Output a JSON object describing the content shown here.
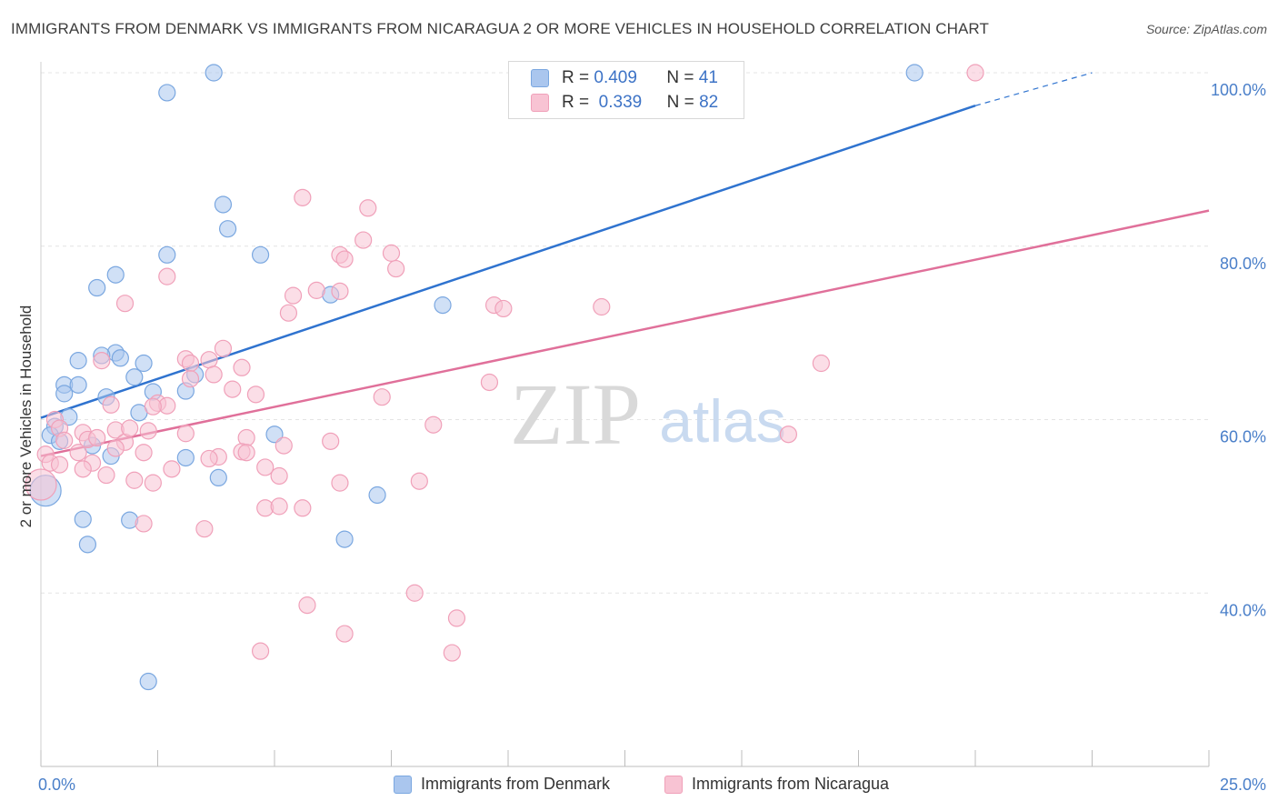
{
  "title": "IMMIGRANTS FROM DENMARK VS IMMIGRANTS FROM NICARAGUA 2 OR MORE VEHICLES IN HOUSEHOLD CORRELATION CHART",
  "source": "Source: ZipAtlas.com",
  "watermark": {
    "zip": "ZIP",
    "atlas": "atlas"
  },
  "legend": {
    "r_label": "R =",
    "n_label": "N =",
    "rows": [
      {
        "r": "0.409",
        "n": "41",
        "color": "#7aa7e0"
      },
      {
        "r": "0.339",
        "n": "82",
        "color": "#f4a3be"
      }
    ]
  },
  "colors": {
    "denmark_fill": "#aac6ee",
    "denmark_stroke": "#7aa7e0",
    "denmark_line": "#2f73cf",
    "nicaragua_fill": "#f8c3d3",
    "nicaragua_stroke": "#f0a0b9",
    "nicaragua_line": "#e0709a"
  },
  "chart_data": {
    "type": "scatter",
    "title": "IMMIGRANTS FROM DENMARK VS IMMIGRANTS FROM NICARAGUA 2 OR MORE VEHICLES IN HOUSEHOLD CORRELATION CHART",
    "xlabel": "",
    "ylabel": "2 or more Vehicles in Household",
    "xlim": [
      0,
      25
    ],
    "ylim": [
      20,
      100
    ],
    "x_tick_labels": [
      "0.0%",
      "25.0%"
    ],
    "y_ticks": [
      40,
      60,
      80,
      100
    ],
    "y_tick_labels": [
      "40.0%",
      "60.0%",
      "80.0%",
      "100.0%"
    ],
    "grid": true,
    "legend_placement": "top-center",
    "series": [
      {
        "name": "Immigrants from Denmark",
        "r": 0.409,
        "n": 41,
        "trend": {
          "x0": 0,
          "y0": 60.2,
          "x1": 20,
          "y1": 96.2,
          "dash_to_x": 22.5,
          "dash_to_y": 100
        },
        "points": [
          [
            3.7,
            100
          ],
          [
            18.7,
            100
          ],
          [
            2.7,
            97.7
          ],
          [
            3.9,
            84.8
          ],
          [
            4.0,
            82.0
          ],
          [
            2.7,
            79.0
          ],
          [
            4.7,
            79.0
          ],
          [
            1.6,
            76.7
          ],
          [
            1.2,
            75.2
          ],
          [
            6.2,
            74.4
          ],
          [
            8.6,
            73.2
          ],
          [
            0.8,
            66.8
          ],
          [
            1.6,
            67.7
          ],
          [
            1.3,
            67.4
          ],
          [
            1.7,
            67.1
          ],
          [
            2.2,
            66.5
          ],
          [
            0.5,
            64.0
          ],
          [
            0.8,
            64.0
          ],
          [
            2.0,
            64.9
          ],
          [
            3.3,
            65.2
          ],
          [
            0.5,
            63.0
          ],
          [
            1.4,
            62.6
          ],
          [
            2.4,
            63.2
          ],
          [
            3.1,
            63.3
          ],
          [
            2.1,
            60.8
          ],
          [
            0.6,
            60.3
          ],
          [
            0.3,
            59.2
          ],
          [
            0.2,
            58.2
          ],
          [
            0.4,
            57.5
          ],
          [
            5.0,
            58.3
          ],
          [
            1.1,
            57.0
          ],
          [
            1.5,
            55.8
          ],
          [
            3.1,
            55.6
          ],
          [
            3.8,
            53.3
          ],
          [
            7.2,
            51.3
          ],
          [
            0.1,
            51.8
          ],
          [
            0.9,
            48.5
          ],
          [
            1.9,
            48.4
          ],
          [
            1.0,
            45.6
          ],
          [
            6.5,
            46.2
          ],
          [
            2.3,
            29.8
          ]
        ]
      },
      {
        "name": "Immigrants from Nicaragua",
        "r": 0.339,
        "n": 82,
        "trend": {
          "x0": 0,
          "y0": 55.8,
          "x1": 25,
          "y1": 84.1
        },
        "points": [
          [
            20.0,
            100
          ],
          [
            5.6,
            85.6
          ],
          [
            7.0,
            84.4
          ],
          [
            6.9,
            80.7
          ],
          [
            7.5,
            79.2
          ],
          [
            6.4,
            79.0
          ],
          [
            6.5,
            78.5
          ],
          [
            2.7,
            76.5
          ],
          [
            7.6,
            77.4
          ],
          [
            5.9,
            74.9
          ],
          [
            6.4,
            74.8
          ],
          [
            5.4,
            74.3
          ],
          [
            1.8,
            73.4
          ],
          [
            9.7,
            73.2
          ],
          [
            9.9,
            72.8
          ],
          [
            12.0,
            73.0
          ],
          [
            5.3,
            72.3
          ],
          [
            3.9,
            68.2
          ],
          [
            3.1,
            67.0
          ],
          [
            3.6,
            66.9
          ],
          [
            3.2,
            66.5
          ],
          [
            1.3,
            66.8
          ],
          [
            4.3,
            66.0
          ],
          [
            16.7,
            66.5
          ],
          [
            3.7,
            65.2
          ],
          [
            3.2,
            64.7
          ],
          [
            4.1,
            63.5
          ],
          [
            4.6,
            62.9
          ],
          [
            9.6,
            64.3
          ],
          [
            2.5,
            61.9
          ],
          [
            2.7,
            61.6
          ],
          [
            1.5,
            61.7
          ],
          [
            7.3,
            62.6
          ],
          [
            8.4,
            59.4
          ],
          [
            0.3,
            60.0
          ],
          [
            0.4,
            59.0
          ],
          [
            0.9,
            58.5
          ],
          [
            1.0,
            57.7
          ],
          [
            1.6,
            58.8
          ],
          [
            2.3,
            58.7
          ],
          [
            3.1,
            58.4
          ],
          [
            4.4,
            57.9
          ],
          [
            1.2,
            57.9
          ],
          [
            0.5,
            57.6
          ],
          [
            1.8,
            57.4
          ],
          [
            6.2,
            57.5
          ],
          [
            5.2,
            57.0
          ],
          [
            0.8,
            56.2
          ],
          [
            1.6,
            56.7
          ],
          [
            2.2,
            56.2
          ],
          [
            4.3,
            56.3
          ],
          [
            0.1,
            56.0
          ],
          [
            0.2,
            55.0
          ],
          [
            0.4,
            54.8
          ],
          [
            3.8,
            55.7
          ],
          [
            1.1,
            55.0
          ],
          [
            0.9,
            54.3
          ],
          [
            2.8,
            54.3
          ],
          [
            1.4,
            53.6
          ],
          [
            2.0,
            53.0
          ],
          [
            2.4,
            52.7
          ],
          [
            4.8,
            54.5
          ],
          [
            5.1,
            53.5
          ],
          [
            6.4,
            52.7
          ],
          [
            8.1,
            52.9
          ],
          [
            0.0,
            52.5
          ],
          [
            4.8,
            49.8
          ],
          [
            5.1,
            50.0
          ],
          [
            5.6,
            49.8
          ],
          [
            2.2,
            48.0
          ],
          [
            3.5,
            47.4
          ],
          [
            8.0,
            40.0
          ],
          [
            5.7,
            38.6
          ],
          [
            8.9,
            37.1
          ],
          [
            6.5,
            35.3
          ],
          [
            4.7,
            33.3
          ],
          [
            8.8,
            33.1
          ],
          [
            4.4,
            56.2
          ],
          [
            3.6,
            55.5
          ],
          [
            1.9,
            59.0
          ],
          [
            16.0,
            58.3
          ],
          [
            2.4,
            61.5
          ]
        ]
      }
    ]
  },
  "bottom_legend": [
    "Immigrants from Denmark",
    "Immigrants from Nicaragua"
  ]
}
